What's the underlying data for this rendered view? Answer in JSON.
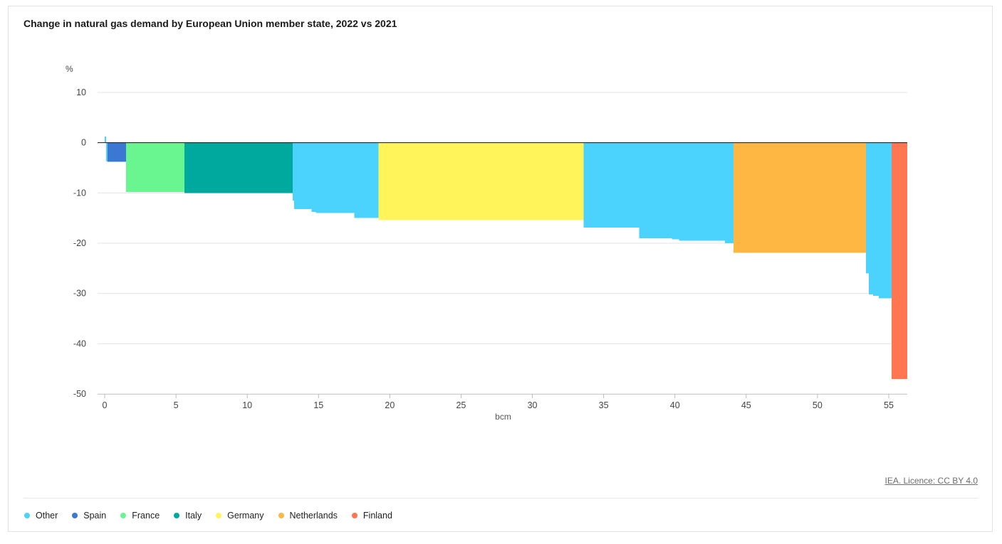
{
  "chart_title": "Change in natural gas demand by European Union member state, 2022 vs 2021",
  "license_text": "IEA. Licence: CC BY 4.0",
  "legend": [
    {
      "name": "Other",
      "color": "#4bd3fd"
    },
    {
      "name": "Spain",
      "color": "#3a78d4"
    },
    {
      "name": "France",
      "color": "#69f690"
    },
    {
      "name": "Italy",
      "color": "#00a99d"
    },
    {
      "name": "Germany",
      "color": "#fff459"
    },
    {
      "name": "Netherlands",
      "color": "#ffb743"
    },
    {
      "name": "Finland",
      "color": "#ff7651"
    }
  ],
  "chart_data": {
    "type": "bar",
    "subtype": "variable-width",
    "title": "Change in natural gas demand by European Union member state, 2022 vs 2021",
    "xlabel": "bcm",
    "ylabel": "%",
    "xlim": [
      -0.5,
      56.3
    ],
    "ylim": [
      -50,
      10
    ],
    "x_ticks": [
      0,
      5,
      10,
      15,
      20,
      25,
      30,
      35,
      40,
      45,
      50,
      55
    ],
    "y_ticks": [
      10,
      0,
      -10,
      -20,
      -30,
      -40,
      -50
    ],
    "grid": true,
    "legend_position": "bottom",
    "bars": [
      {
        "series": "Other",
        "x0": 0.0,
        "x1": 0.1,
        "value": 1.2
      },
      {
        "series": "Other",
        "x0": 0.1,
        "x1": 0.2,
        "value": -3.7
      },
      {
        "series": "Spain",
        "x0": 0.2,
        "x1": 1.5,
        "value": -3.8
      },
      {
        "series": "France",
        "x0": 1.5,
        "x1": 5.6,
        "value": -9.8
      },
      {
        "series": "Italy",
        "x0": 5.6,
        "x1": 13.2,
        "value": -10.0
      },
      {
        "series": "Other",
        "x0": 13.2,
        "x1": 13.3,
        "value": -11.5
      },
      {
        "series": "Other",
        "x0": 13.3,
        "x1": 14.5,
        "value": -13.2
      },
      {
        "series": "Other",
        "x0": 14.5,
        "x1": 14.8,
        "value": -13.8
      },
      {
        "series": "Other",
        "x0": 14.8,
        "x1": 17.5,
        "value": -14.0
      },
      {
        "series": "Other",
        "x0": 17.5,
        "x1": 19.2,
        "value": -15.0
      },
      {
        "series": "Germany",
        "x0": 19.2,
        "x1": 33.6,
        "value": -15.4
      },
      {
        "series": "Other",
        "x0": 33.6,
        "x1": 37.5,
        "value": -16.9
      },
      {
        "series": "Other",
        "x0": 37.5,
        "x1": 39.8,
        "value": -19.0
      },
      {
        "series": "Other",
        "x0": 39.8,
        "x1": 40.3,
        "value": -19.2
      },
      {
        "series": "Other",
        "x0": 40.3,
        "x1": 43.5,
        "value": -19.5
      },
      {
        "series": "Other",
        "x0": 43.5,
        "x1": 44.1,
        "value": -20.0
      },
      {
        "series": "Netherlands",
        "x0": 44.1,
        "x1": 53.4,
        "value": -21.9
      },
      {
        "series": "Other",
        "x0": 53.4,
        "x1": 53.6,
        "value": -26.0
      },
      {
        "series": "Other",
        "x0": 53.6,
        "x1": 53.9,
        "value": -30.2
      },
      {
        "series": "Other",
        "x0": 53.9,
        "x1": 54.3,
        "value": -30.5
      },
      {
        "series": "Other",
        "x0": 54.3,
        "x1": 55.2,
        "value": -31.0
      },
      {
        "series": "Finland",
        "x0": 55.2,
        "x1": 56.3,
        "value": -47.0
      }
    ]
  }
}
